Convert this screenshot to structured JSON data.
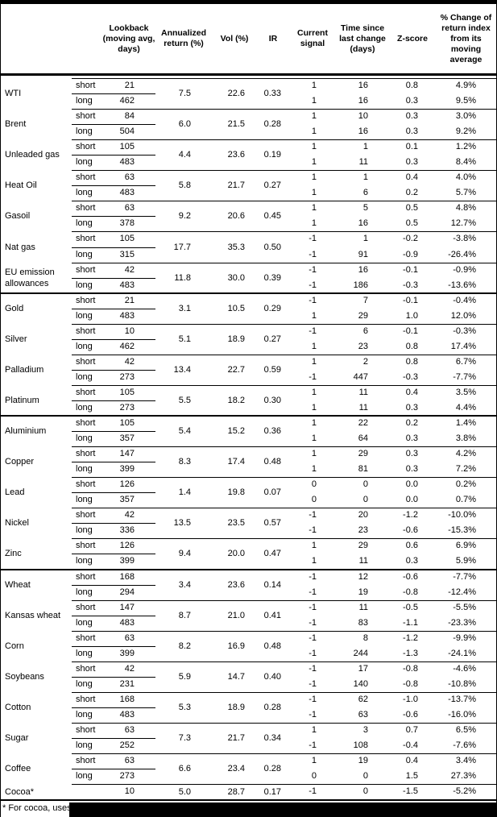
{
  "table": {
    "headers": [
      "Lookback (moving avg, days)",
      "Annualized return (%)",
      "Vol (%)",
      "IR",
      "Current signal",
      "Time since last change (days)",
      "Z-score",
      "% Change of return index from its moving average"
    ],
    "commodities": [
      {
        "name": "WTI",
        "section_break": false,
        "annualized_return": "7.5",
        "vol": "22.6",
        "ir": "0.33",
        "rows": [
          {
            "leg": "short",
            "lookback": "21",
            "signal": "1",
            "time_since": "16",
            "z_score": "0.8",
            "pct_change": "4.9%"
          },
          {
            "leg": "long",
            "lookback": "462",
            "signal": "1",
            "time_since": "16",
            "z_score": "0.3",
            "pct_change": "9.5%"
          }
        ]
      },
      {
        "name": "Brent",
        "section_break": false,
        "annualized_return": "6.0",
        "vol": "21.5",
        "ir": "0.28",
        "rows": [
          {
            "leg": "short",
            "lookback": "84",
            "signal": "1",
            "time_since": "10",
            "z_score": "0.3",
            "pct_change": "3.0%"
          },
          {
            "leg": "long",
            "lookback": "504",
            "signal": "1",
            "time_since": "16",
            "z_score": "0.3",
            "pct_change": "9.2%"
          }
        ]
      },
      {
        "name": "Unleaded gas",
        "section_break": false,
        "annualized_return": "4.4",
        "vol": "23.6",
        "ir": "0.19",
        "rows": [
          {
            "leg": "short",
            "lookback": "105",
            "signal": "1",
            "time_since": "1",
            "z_score": "0.1",
            "pct_change": "1.2%"
          },
          {
            "leg": "long",
            "lookback": "483",
            "signal": "1",
            "time_since": "11",
            "z_score": "0.3",
            "pct_change": "8.4%"
          }
        ]
      },
      {
        "name": "Heat Oil",
        "section_break": false,
        "annualized_return": "5.8",
        "vol": "21.7",
        "ir": "0.27",
        "rows": [
          {
            "leg": "short",
            "lookback": "63",
            "signal": "1",
            "time_since": "1",
            "z_score": "0.4",
            "pct_change": "4.0%"
          },
          {
            "leg": "long",
            "lookback": "483",
            "signal": "1",
            "time_since": "6",
            "z_score": "0.2",
            "pct_change": "5.7%"
          }
        ]
      },
      {
        "name": "Gasoil",
        "section_break": false,
        "annualized_return": "9.2",
        "vol": "20.6",
        "ir": "0.45",
        "rows": [
          {
            "leg": "short",
            "lookback": "63",
            "signal": "1",
            "time_since": "5",
            "z_score": "0.5",
            "pct_change": "4.8%"
          },
          {
            "leg": "long",
            "lookback": "378",
            "signal": "1",
            "time_since": "16",
            "z_score": "0.5",
            "pct_change": "12.7%"
          }
        ]
      },
      {
        "name": "Nat gas",
        "section_break": false,
        "annualized_return": "17.7",
        "vol": "35.3",
        "ir": "0.50",
        "rows": [
          {
            "leg": "short",
            "lookback": "105",
            "signal": "-1",
            "time_since": "1",
            "z_score": "-0.2",
            "pct_change": "-3.8%"
          },
          {
            "leg": "long",
            "lookback": "315",
            "signal": "-1",
            "time_since": "91",
            "z_score": "-0.9",
            "pct_change": "-26.4%"
          }
        ]
      },
      {
        "name": "EU emission allowances",
        "section_break": false,
        "annualized_return": "11.8",
        "vol": "30.0",
        "ir": "0.39",
        "rows": [
          {
            "leg": "short",
            "lookback": "42",
            "signal": "-1",
            "time_since": "16",
            "z_score": "-0.1",
            "pct_change": "-0.9%"
          },
          {
            "leg": "long",
            "lookback": "483",
            "signal": "-1",
            "time_since": "186",
            "z_score": "-0.3",
            "pct_change": "-13.6%"
          }
        ]
      },
      {
        "name": "Gold",
        "section_break": true,
        "annualized_return": "3.1",
        "vol": "10.5",
        "ir": "0.29",
        "rows": [
          {
            "leg": "short",
            "lookback": "21",
            "signal": "-1",
            "time_since": "7",
            "z_score": "-0.1",
            "pct_change": "-0.4%"
          },
          {
            "leg": "long",
            "lookback": "483",
            "signal": "1",
            "time_since": "29",
            "z_score": "1.0",
            "pct_change": "12.0%"
          }
        ]
      },
      {
        "name": "Silver",
        "section_break": false,
        "annualized_return": "5.1",
        "vol": "18.9",
        "ir": "0.27",
        "rows": [
          {
            "leg": "short",
            "lookback": "10",
            "signal": "-1",
            "time_since": "6",
            "z_score": "-0.1",
            "pct_change": "-0.3%"
          },
          {
            "leg": "long",
            "lookback": "462",
            "signal": "1",
            "time_since": "23",
            "z_score": "0.8",
            "pct_change": "17.4%"
          }
        ]
      },
      {
        "name": "Palladium",
        "section_break": false,
        "annualized_return": "13.4",
        "vol": "22.7",
        "ir": "0.59",
        "rows": [
          {
            "leg": "short",
            "lookback": "42",
            "signal": "1",
            "time_since": "2",
            "z_score": "0.8",
            "pct_change": "6.7%"
          },
          {
            "leg": "long",
            "lookback": "273",
            "signal": "-1",
            "time_since": "447",
            "z_score": "-0.3",
            "pct_change": "-7.7%"
          }
        ]
      },
      {
        "name": "Platinum",
        "section_break": false,
        "annualized_return": "5.5",
        "vol": "18.2",
        "ir": "0.30",
        "rows": [
          {
            "leg": "short",
            "lookback": "105",
            "signal": "1",
            "time_since": "11",
            "z_score": "0.4",
            "pct_change": "3.5%"
          },
          {
            "leg": "long",
            "lookback": "273",
            "signal": "1",
            "time_since": "11",
            "z_score": "0.3",
            "pct_change": "4.4%"
          }
        ]
      },
      {
        "name": "Aluminium",
        "section_break": true,
        "annualized_return": "5.4",
        "vol": "15.2",
        "ir": "0.36",
        "rows": [
          {
            "leg": "short",
            "lookback": "105",
            "signal": "1",
            "time_since": "22",
            "z_score": "0.2",
            "pct_change": "1.4%"
          },
          {
            "leg": "long",
            "lookback": "357",
            "signal": "1",
            "time_since": "64",
            "z_score": "0.3",
            "pct_change": "3.8%"
          }
        ]
      },
      {
        "name": "Copper",
        "section_break": false,
        "annualized_return": "8.3",
        "vol": "17.4",
        "ir": "0.48",
        "rows": [
          {
            "leg": "short",
            "lookback": "147",
            "signal": "1",
            "time_since": "29",
            "z_score": "0.3",
            "pct_change": "4.2%"
          },
          {
            "leg": "long",
            "lookback": "399",
            "signal": "1",
            "time_since": "81",
            "z_score": "0.3",
            "pct_change": "7.2%"
          }
        ]
      },
      {
        "name": "Lead",
        "section_break": false,
        "annualized_return": "1.4",
        "vol": "19.8",
        "ir": "0.07",
        "rows": [
          {
            "leg": "short",
            "lookback": "126",
            "signal": "0",
            "time_since": "0",
            "z_score": "0.0",
            "pct_change": "0.2%"
          },
          {
            "leg": "long",
            "lookback": "357",
            "signal": "0",
            "time_since": "0",
            "z_score": "0.0",
            "pct_change": "0.7%"
          }
        ]
      },
      {
        "name": "Nickel",
        "section_break": false,
        "annualized_return": "13.5",
        "vol": "23.5",
        "ir": "0.57",
        "rows": [
          {
            "leg": "short",
            "lookback": "42",
            "signal": "-1",
            "time_since": "20",
            "z_score": "-1.2",
            "pct_change": "-10.0%"
          },
          {
            "leg": "long",
            "lookback": "336",
            "signal": "-1",
            "time_since": "23",
            "z_score": "-0.6",
            "pct_change": "-15.3%"
          }
        ]
      },
      {
        "name": "Zinc",
        "section_break": false,
        "annualized_return": "9.4",
        "vol": "20.0",
        "ir": "0.47",
        "rows": [
          {
            "leg": "short",
            "lookback": "126",
            "signal": "1",
            "time_since": "29",
            "z_score": "0.6",
            "pct_change": "6.9%"
          },
          {
            "leg": "long",
            "lookback": "399",
            "signal": "1",
            "time_since": "11",
            "z_score": "0.3",
            "pct_change": "5.9%"
          }
        ]
      },
      {
        "name": "Wheat",
        "section_break": true,
        "annualized_return": "3.4",
        "vol": "23.6",
        "ir": "0.14",
        "rows": [
          {
            "leg": "short",
            "lookback": "168",
            "signal": "-1",
            "time_since": "12",
            "z_score": "-0.6",
            "pct_change": "-7.7%"
          },
          {
            "leg": "long",
            "lookback": "294",
            "signal": "-1",
            "time_since": "19",
            "z_score": "-0.8",
            "pct_change": "-12.4%"
          }
        ]
      },
      {
        "name": "Kansas wheat",
        "section_break": false,
        "annualized_return": "8.7",
        "vol": "21.0",
        "ir": "0.41",
        "rows": [
          {
            "leg": "short",
            "lookback": "147",
            "signal": "-1",
            "time_since": "11",
            "z_score": "-0.5",
            "pct_change": "-5.5%"
          },
          {
            "leg": "long",
            "lookback": "483",
            "signal": "-1",
            "time_since": "83",
            "z_score": "-1.1",
            "pct_change": "-23.3%"
          }
        ]
      },
      {
        "name": "Corn",
        "section_break": false,
        "annualized_return": "8.2",
        "vol": "16.9",
        "ir": "0.48",
        "rows": [
          {
            "leg": "short",
            "lookback": "63",
            "signal": "-1",
            "time_since": "8",
            "z_score": "-1.2",
            "pct_change": "-9.9%"
          },
          {
            "leg": "long",
            "lookback": "399",
            "signal": "-1",
            "time_since": "244",
            "z_score": "-1.3",
            "pct_change": "-24.1%"
          }
        ]
      },
      {
        "name": "Soybeans",
        "section_break": false,
        "annualized_return": "5.9",
        "vol": "14.7",
        "ir": "0.40",
        "rows": [
          {
            "leg": "short",
            "lookback": "42",
            "signal": "-1",
            "time_since": "17",
            "z_score": "-0.8",
            "pct_change": "-4.6%"
          },
          {
            "leg": "long",
            "lookback": "231",
            "signal": "-1",
            "time_since": "140",
            "z_score": "-0.8",
            "pct_change": "-10.8%"
          }
        ]
      },
      {
        "name": "Cotton",
        "section_break": false,
        "annualized_return": "5.3",
        "vol": "18.9",
        "ir": "0.28",
        "rows": [
          {
            "leg": "short",
            "lookback": "168",
            "signal": "-1",
            "time_since": "62",
            "z_score": "-1.0",
            "pct_change": "-13.7%"
          },
          {
            "leg": "long",
            "lookback": "483",
            "signal": "-1",
            "time_since": "63",
            "z_score": "-0.6",
            "pct_change": "-16.0%"
          }
        ]
      },
      {
        "name": "Sugar",
        "section_break": false,
        "annualized_return": "7.3",
        "vol": "21.7",
        "ir": "0.34",
        "rows": [
          {
            "leg": "short",
            "lookback": "63",
            "signal": "1",
            "time_since": "3",
            "z_score": "0.7",
            "pct_change": "6.5%"
          },
          {
            "leg": "long",
            "lookback": "252",
            "signal": "-1",
            "time_since": "108",
            "z_score": "-0.4",
            "pct_change": "-7.6%"
          }
        ]
      },
      {
        "name": "Coffee",
        "section_break": false,
        "annualized_return": "6.6",
        "vol": "23.4",
        "ir": "0.28",
        "rows": [
          {
            "leg": "short",
            "lookback": "63",
            "signal": "1",
            "time_since": "19",
            "z_score": "0.4",
            "pct_change": "3.4%"
          },
          {
            "leg": "long",
            "lookback": "273",
            "signal": "0",
            "time_since": "0",
            "z_score": "1.5",
            "pct_change": "27.3%"
          }
        ]
      },
      {
        "name": "Cocoa*",
        "section_break": false,
        "annualized_return": "5.0",
        "vol": "28.7",
        "ir": "0.17",
        "rows": [
          {
            "leg": "",
            "lookback": "10",
            "signal": "-1",
            "time_since": "0",
            "z_score": "-1.5",
            "pct_change": "-5.2%"
          }
        ]
      }
    ]
  },
  "footnote": {
    "text": "* For cocoa, uses o"
  },
  "colors": {
    "background": "#ffffff",
    "border": "#000000",
    "redaction": "#000000",
    "text": "#000000"
  }
}
